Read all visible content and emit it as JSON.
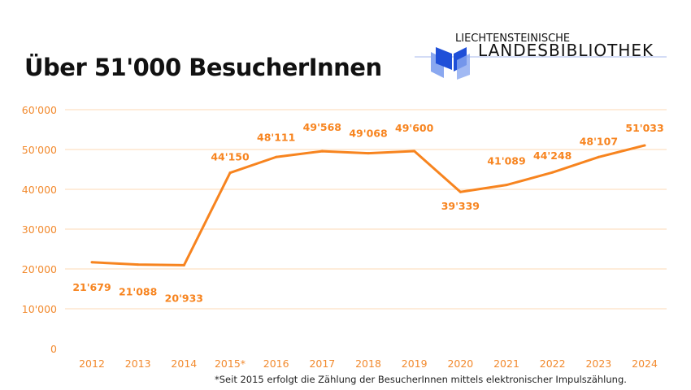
{
  "title": "Über 51'000 BesucherInnen",
  "logo": {
    "line1": "LIECHTENSTEINISCHE",
    "line2": "LANDESBIBLIOTHEK"
  },
  "footnote": "*Seit 2015 erfolgt die Zählung der BesucherInnen mittels elektronischer Impulszählung.",
  "colors": {
    "line": "#f7841f",
    "grid": "#fcd9b5",
    "tick": "#f28a2e",
    "logo_blue": "#1f4fd8",
    "logo_light": "#8aa8f0"
  },
  "chart_data": {
    "type": "line",
    "title": "Über 51'000 BesucherInnen",
    "categories": [
      "2012",
      "2013",
      "2014",
      "2015*",
      "2016",
      "2017",
      "2018",
      "2019",
      "2020",
      "2021",
      "2022",
      "2023",
      "2024"
    ],
    "values": [
      21679,
      21088,
      20933,
      44150,
      48111,
      49568,
      49068,
      49600,
      39339,
      41089,
      44248,
      48107,
      51033
    ],
    "data_labels": [
      "21'679",
      "21'088",
      "20'933",
      "44'150",
      "48'111",
      "49'568",
      "49'068",
      "49'600",
      "39'339",
      "41'089",
      "44'248",
      "48'107",
      "51'033"
    ],
    "yticks": [
      0,
      10000,
      20000,
      30000,
      40000,
      50000,
      60000
    ],
    "ytick_labels": [
      "0",
      "10'000",
      "20'000",
      "30'000",
      "40'000",
      "50'000",
      "60'000"
    ],
    "ylim": [
      0,
      60000
    ],
    "grid": true,
    "legend": "none",
    "xlabel": "",
    "ylabel": ""
  }
}
